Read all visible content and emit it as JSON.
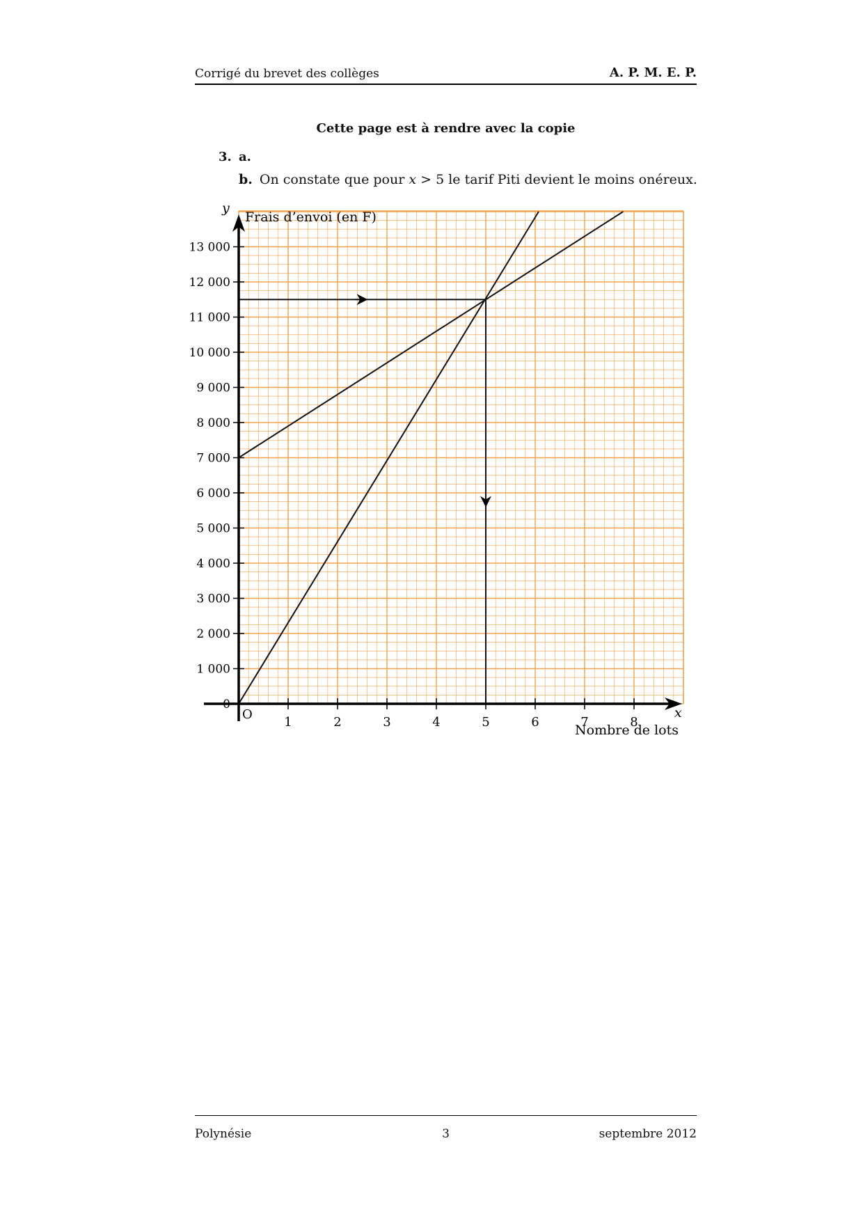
{
  "header": {
    "left": "Corrigé du brevet des collèges",
    "right": "A. P. M. E. P."
  },
  "notice": "Cette page est à rendre avec la copie",
  "question": {
    "number": "3.",
    "a_label": "a.",
    "b_label": "b.",
    "b_text_1": "On constate que pour ",
    "b_var": "x",
    "b_text_2": " > 5 le tarif Piti devient le moins onéreux."
  },
  "chart_data": {
    "type": "line",
    "ylabel": "Frais d’envoi (en F)",
    "xlabel": "Nombre de lots",
    "x_axis_name": "x",
    "y_axis_name": "y",
    "origin_label": "O",
    "xlim": [
      0,
      9
    ],
    "ylim": [
      0,
      14000
    ],
    "x_ticks": [
      1,
      2,
      3,
      4,
      5,
      6,
      7,
      8
    ],
    "y_ticks": [
      0,
      1000,
      2000,
      3000,
      4000,
      5000,
      6000,
      7000,
      8000,
      9000,
      10000,
      11000,
      12000,
      13000
    ],
    "y_tick_labels": [
      "0",
      "1 000",
      "2 000",
      "3 000",
      "4 000",
      "5 000",
      "6 000",
      "7 000",
      "8 000",
      "9 000",
      "10 000",
      "11 000",
      "12 000",
      "13 000"
    ],
    "grid": true,
    "grid_color": "#f5a04a",
    "series": [
      {
        "x": [
          0,
          6.07
        ],
        "y": [
          0,
          14000
        ]
      },
      {
        "x": [
          0,
          7.78
        ],
        "y": [
          7000,
          14000
        ]
      }
    ],
    "guides": {
      "point": [
        5,
        11500
      ],
      "horizontal": {
        "from_x": 0,
        "to_x": 5,
        "y": 11500
      },
      "vertical": {
        "x": 5,
        "from_y": 11500,
        "to_y": 0
      }
    }
  },
  "footer": {
    "left": "Polynésie",
    "center": "3",
    "right": "septembre 2012"
  }
}
